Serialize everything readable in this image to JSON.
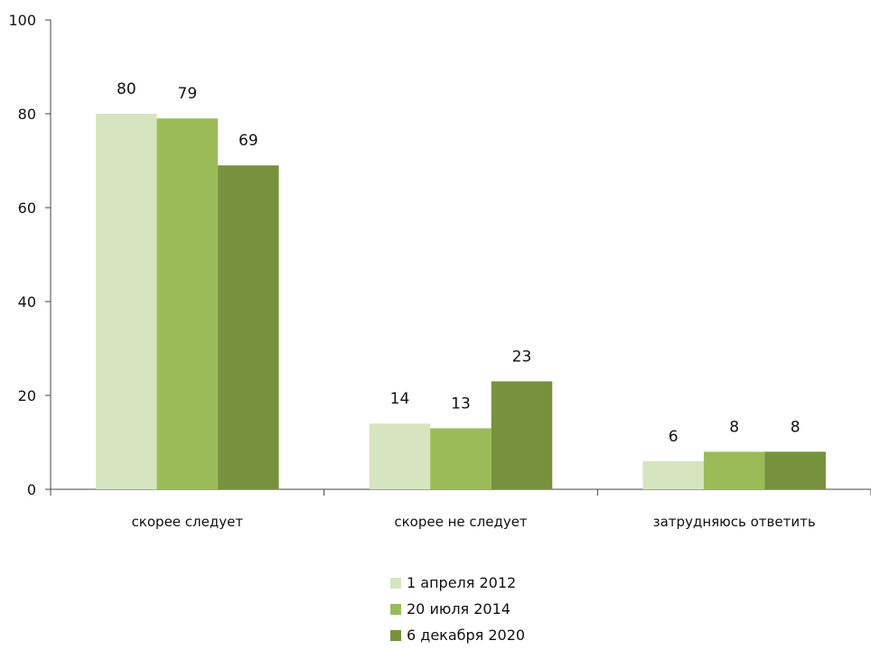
{
  "chart_data": {
    "type": "bar",
    "categories": [
      "скорее следует",
      "скорее не следует",
      "затрудняюсь ответить"
    ],
    "series": [
      {
        "name": "1 апреля 2012",
        "values": [
          80,
          14,
          6
        ],
        "color": "#d6e4c0"
      },
      {
        "name": "20 июля 2014",
        "values": [
          79,
          13,
          8
        ],
        "color": "#9bbb59"
      },
      {
        "name": "6 декабря 2020",
        "values": [
          69,
          23,
          8
        ],
        "color": "#76923c"
      }
    ],
    "ylim": [
      0,
      100
    ],
    "yticks": [
      "0",
      "20",
      "40",
      "60",
      "80",
      "100"
    ],
    "grid": false,
    "legend_position": "bottom"
  }
}
